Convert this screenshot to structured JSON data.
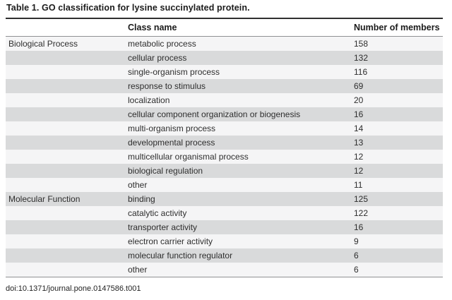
{
  "page": {
    "title": "Table 1.  GO classification for lysine succinylated protein.",
    "footer_doi": "doi:10.1371/journal.pone.0147586.t001"
  },
  "table": {
    "columns": [
      "",
      "Class name",
      "Number of members"
    ],
    "rows": [
      {
        "group": "Biological Process",
        "class_name": "metabolic process",
        "members": "158"
      },
      {
        "group": "",
        "class_name": "cellular process",
        "members": "132"
      },
      {
        "group": "",
        "class_name": "single-organism process",
        "members": "116"
      },
      {
        "group": "",
        "class_name": "response to stimulus",
        "members": "69"
      },
      {
        "group": "",
        "class_name": "localization",
        "members": "20"
      },
      {
        "group": "",
        "class_name": "cellular component organization or biogenesis",
        "members": "16"
      },
      {
        "group": "",
        "class_name": "multi-organism process",
        "members": "14"
      },
      {
        "group": "",
        "class_name": "developmental process",
        "members": "13"
      },
      {
        "group": "",
        "class_name": "multicellular organismal process",
        "members": "12"
      },
      {
        "group": "",
        "class_name": "biological regulation",
        "members": "12"
      },
      {
        "group": "",
        "class_name": "other",
        "members": "11"
      },
      {
        "group": "Molecular Function",
        "class_name": "binding",
        "members": "125"
      },
      {
        "group": "",
        "class_name": "catalytic activity",
        "members": "122"
      },
      {
        "group": "",
        "class_name": "transporter activity",
        "members": "16"
      },
      {
        "group": "",
        "class_name": "electron carrier activity",
        "members": "9"
      },
      {
        "group": "",
        "class_name": "molecular function regulator",
        "members": "6"
      },
      {
        "group": "",
        "class_name": "other",
        "members": "6"
      }
    ],
    "colors": {
      "stripe_gray": "#d9dadb",
      "stripe_light": "#f5f5f6",
      "rule_dark": "#2f2f2f",
      "rule_medium": "#8f9193"
    }
  }
}
